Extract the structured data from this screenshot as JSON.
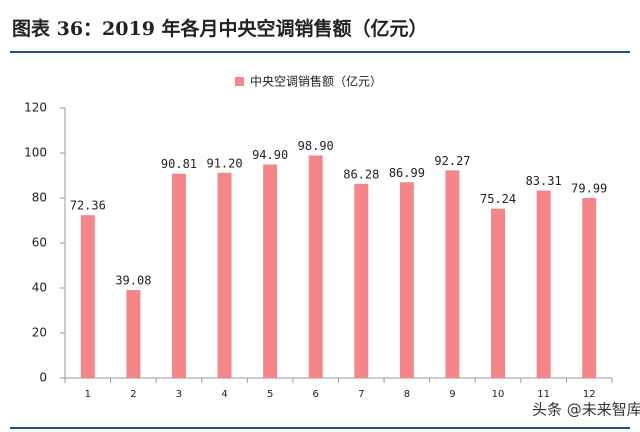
{
  "chart_data": {
    "type": "bar",
    "title": "图表 36：2019 年各月中央空调销售额（亿元）",
    "categories": [
      "1",
      "2",
      "3",
      "4",
      "5",
      "6",
      "7",
      "8",
      "9",
      "10",
      "11",
      "12"
    ],
    "series": [
      {
        "name": "中央空调销售额（亿元）",
        "color": "#f4868a",
        "values": [
          72.36,
          39.08,
          90.81,
          91.2,
          94.9,
          98.9,
          86.28,
          86.99,
          92.27,
          75.24,
          83.31,
          79.99
        ],
        "value_labels": [
          "72.36",
          "39.08",
          "90.81",
          "91.20",
          "94.90",
          "98.90",
          "86.28",
          "86.99",
          "92.27",
          "75.24",
          "83.31",
          "79.99"
        ]
      }
    ],
    "ylim": [
      0,
      120
    ],
    "yticks": [
      0,
      20,
      40,
      60,
      80,
      100,
      120
    ],
    "grid": false,
    "watermark": "头条 @未来智库"
  }
}
